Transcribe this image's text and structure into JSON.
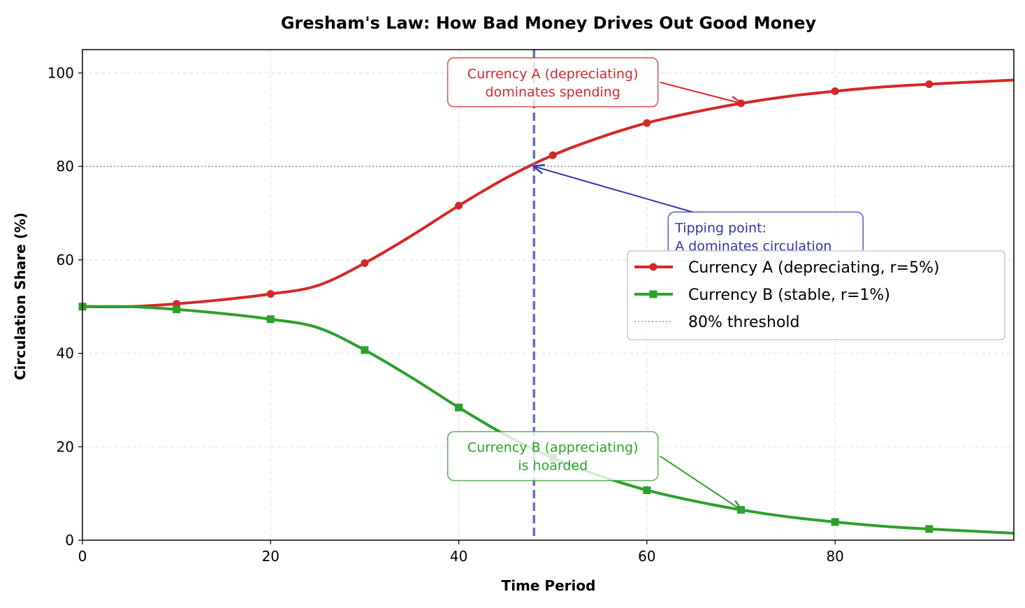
{
  "chart_data": {
    "type": "line",
    "title": "Gresham's Law: How Bad Money Drives Out Good Money",
    "xlabel": "Time Period",
    "ylabel": "Circulation Share (%)",
    "xlim": [
      0,
      99
    ],
    "ylim": [
      0,
      105
    ],
    "xticks": [
      0,
      20,
      40,
      60,
      80
    ],
    "yticks": [
      0,
      20,
      40,
      60,
      80,
      100
    ],
    "grid": true,
    "legend_placement": "center-right",
    "x": [
      0,
      5,
      10,
      15,
      20,
      25,
      30,
      35,
      40,
      45,
      50,
      55,
      60,
      65,
      70,
      75,
      80,
      85,
      90,
      95,
      99
    ],
    "series": [
      {
        "name": "Currency A (depreciating, r=5%)",
        "color": "#d62728",
        "marker": "circle",
        "values": [
          50,
          50.0,
          50.6,
          51.5,
          52.7,
          54.5,
          59.3,
          65.2,
          71.6,
          77.5,
          82.4,
          86.2,
          89.3,
          91.6,
          93.5,
          95.0,
          96.1,
          97.0,
          97.6,
          98.1,
          98.5
        ]
      },
      {
        "name": "Currency B (stable, r=1%)",
        "color": "#2ca02c",
        "marker": "square",
        "values": [
          50,
          50.0,
          49.4,
          48.5,
          47.3,
          45.5,
          40.7,
          34.8,
          28.4,
          22.5,
          17.6,
          13.8,
          10.7,
          8.4,
          6.5,
          5.0,
          3.9,
          3.0,
          2.4,
          1.9,
          1.5
        ]
      }
    ],
    "marker_x": [
      0,
      10,
      20,
      30,
      40,
      50,
      60,
      70,
      80,
      90
    ],
    "threshold": {
      "name": "80% threshold",
      "y": 80,
      "color": "#aaaaaa"
    },
    "tipping_x": 48,
    "tipping_color": "#6b6bc4",
    "annotations": [
      {
        "lines": [
          "Currency A (depreciating)",
          "dominates spending"
        ],
        "color": "#d62728",
        "text_x": 50,
        "text_y": 98,
        "target_x": 70,
        "target_y": 93.5
      },
      {
        "lines": [
          "Tipping point:",
          "A dominates circulation"
        ],
        "color": "#3333b3",
        "text_x": 63,
        "text_y": 65,
        "target_x": 48,
        "target_y": 80
      },
      {
        "lines": [
          "Currency B (appreciating)",
          "is hoarded"
        ],
        "color": "#2ca02c",
        "text_x": 50,
        "text_y": 18,
        "target_x": 70,
        "target_y": 6.5
      }
    ]
  }
}
